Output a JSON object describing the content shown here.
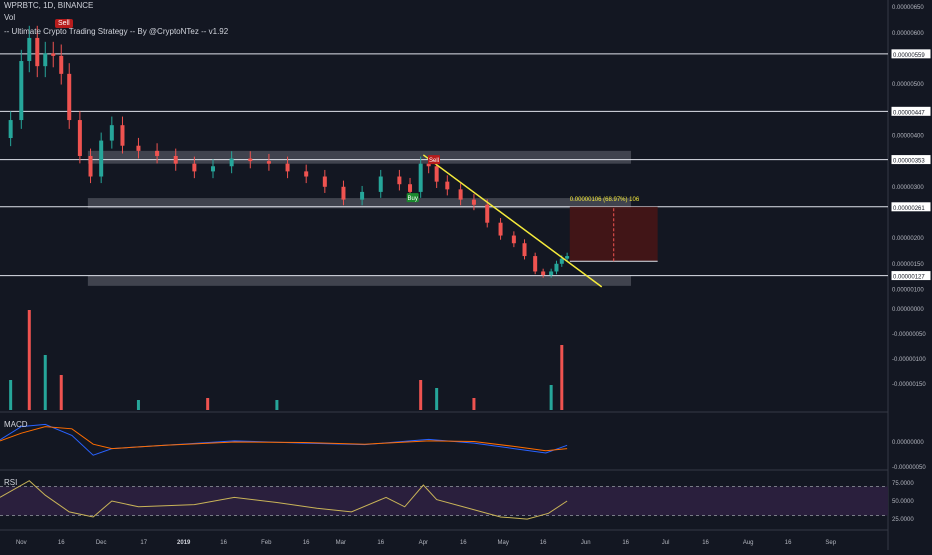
{
  "header": {
    "symbol": "WPRBTC, 1D, BINANCE",
    "volume_label": "Vol",
    "strategy": "-- Ultimate Crypto Trading Strategy -- By @CryptoNTez -- v1.92"
  },
  "colors": {
    "background": "#131722",
    "up": "#26a69a",
    "down": "#ef5350",
    "trendline": "#f5eb3b",
    "zone": "#787b86",
    "macd_line": "#2962ff",
    "signal_line": "#ff6d00",
    "rsi_line": "#c9b458",
    "rsi_band": "#2a1f3d",
    "target_box": "#4a1515"
  },
  "signals": {
    "sell_top": "Sell",
    "sell_mid": "Sell",
    "buy": "Buy"
  },
  "measure_label": "0.00000106 (68.97%) 106",
  "macd_label": "MACD",
  "rsi_label": "RSI",
  "chart_data": {
    "type": "candlestick",
    "x_ticks": [
      "Nov",
      "16",
      "Dec",
      "17",
      "2019",
      "16",
      "Feb",
      "16",
      "Mar",
      "16",
      "Apr",
      "16",
      "May",
      "16",
      "Jun",
      "16",
      "Jul",
      "16",
      "Aug",
      "16",
      "Sep"
    ],
    "price_ticks": [
      "0.00000650",
      "0.00000600",
      "0.00000500",
      "0.00000400",
      "0.00000300",
      "0.00000200",
      "0.00000150",
      "0.00000100"
    ],
    "price_ylim": [
      9.5e-07,
      6.6e-06
    ],
    "horizontal_levels": [
      {
        "label": "0.00000559",
        "value": 5.59e-06
      },
      {
        "label": "0.00000447",
        "value": 4.47e-06
      },
      {
        "label": "0.00000353",
        "value": 3.53e-06
      },
      {
        "label": "0.00000261",
        "value": 2.61e-06
      },
      {
        "label": "0.00000127",
        "value": 1.27e-06
      }
    ],
    "zones": [
      {
        "low": 3.45e-06,
        "high": 3.7e-06
      },
      {
        "low": 2.58e-06,
        "high": 2.78e-06
      },
      {
        "low": 1.07e-06,
        "high": 1.27e-06
      }
    ],
    "close_series": [
      {
        "date": "2018-10-24",
        "close": 3.95e-06
      },
      {
        "date": "2018-10-28",
        "close": 4.3e-06
      },
      {
        "date": "2018-11-01",
        "close": 5.45e-06
      },
      {
        "date": "2018-11-04",
        "close": 5.9e-06
      },
      {
        "date": "2018-11-07",
        "close": 5.35e-06
      },
      {
        "date": "2018-11-10",
        "close": 5.6e-06
      },
      {
        "date": "2018-11-13",
        "close": 5.55e-06
      },
      {
        "date": "2018-11-16",
        "close": 5.2e-06
      },
      {
        "date": "2018-11-19",
        "close": 4.3e-06
      },
      {
        "date": "2018-11-23",
        "close": 3.6e-06
      },
      {
        "date": "2018-11-27",
        "close": 3.2e-06
      },
      {
        "date": "2018-12-01",
        "close": 3.9e-06
      },
      {
        "date": "2018-12-05",
        "close": 4.2e-06
      },
      {
        "date": "2018-12-09",
        "close": 3.8e-06
      },
      {
        "date": "2018-12-15",
        "close": 3.7e-06
      },
      {
        "date": "2018-12-22",
        "close": 3.6e-06
      },
      {
        "date": "2018-12-29",
        "close": 3.45e-06
      },
      {
        "date": "2019-01-05",
        "close": 3.3e-06
      },
      {
        "date": "2019-01-12",
        "close": 3.4e-06
      },
      {
        "date": "2019-01-19",
        "close": 3.55e-06
      },
      {
        "date": "2019-01-26",
        "close": 3.5e-06
      },
      {
        "date": "2019-02-02",
        "close": 3.45e-06
      },
      {
        "date": "2019-02-09",
        "close": 3.3e-06
      },
      {
        "date": "2019-02-16",
        "close": 3.2e-06
      },
      {
        "date": "2019-02-23",
        "close": 3e-06
      },
      {
        "date": "2019-03-02",
        "close": 2.75e-06
      },
      {
        "date": "2019-03-09",
        "close": 2.9e-06
      },
      {
        "date": "2019-03-16",
        "close": 3.2e-06
      },
      {
        "date": "2019-03-23",
        "close": 3.05e-06
      },
      {
        "date": "2019-03-27",
        "close": 2.9e-06
      },
      {
        "date": "2019-03-31",
        "close": 3.45e-06
      },
      {
        "date": "2019-04-03",
        "close": 3.4e-06
      },
      {
        "date": "2019-04-06",
        "close": 3.1e-06
      },
      {
        "date": "2019-04-10",
        "close": 2.95e-06
      },
      {
        "date": "2019-04-15",
        "close": 2.75e-06
      },
      {
        "date": "2019-04-20",
        "close": 2.65e-06
      },
      {
        "date": "2019-04-25",
        "close": 2.3e-06
      },
      {
        "date": "2019-04-30",
        "close": 2.05e-06
      },
      {
        "date": "2019-05-05",
        "close": 1.9e-06
      },
      {
        "date": "2019-05-09",
        "close": 1.65e-06
      },
      {
        "date": "2019-05-13",
        "close": 1.35e-06
      },
      {
        "date": "2019-05-16",
        "close": 1.28e-06
      },
      {
        "date": "2019-05-19",
        "close": 1.35e-06
      },
      {
        "date": "2019-05-21",
        "close": 1.5e-06
      },
      {
        "date": "2019-05-23",
        "close": 1.6e-06
      },
      {
        "date": "2019-05-25",
        "close": 1.65e-06
      }
    ],
    "trendline": {
      "start": {
        "date": "2019-04-01",
        "price": 3.62e-06
      },
      "end": {
        "date": "2019-06-07",
        "price": 1.05e-06
      }
    },
    "target_box": {
      "start_date": "2019-05-26",
      "end_date": "2019-06-28",
      "low": 1.55e-06,
      "high": 2.61e-06
    },
    "volume": [
      {
        "date": "2018-10-28",
        "value": 0.3
      },
      {
        "date": "2018-11-04",
        "value": 1.0
      },
      {
        "date": "2018-11-10",
        "value": 0.55
      },
      {
        "date": "2018-11-16",
        "value": 0.35
      },
      {
        "date": "2018-12-15",
        "value": 0.1
      },
      {
        "date": "2019-01-10",
        "value": 0.12
      },
      {
        "date": "2019-02-05",
        "value": 0.1
      },
      {
        "date": "2019-03-31",
        "value": 0.3
      },
      {
        "date": "2019-04-06",
        "value": 0.22
      },
      {
        "date": "2019-04-20",
        "value": 0.12
      },
      {
        "date": "2019-05-19",
        "value": 0.25
      },
      {
        "date": "2019-05-23",
        "value": 0.65
      }
    ],
    "volume_ticks": [
      "0.00000000",
      "-0.00000050",
      "-0.00000100",
      "-0.00000150"
    ],
    "macd_ticks": [
      "0.00000000",
      "-0.00000050"
    ],
    "macd": [
      {
        "date": "2018-10-24",
        "macd": 0.1,
        "signal": 0.05
      },
      {
        "date": "2018-11-01",
        "macd": 0.7,
        "signal": 0.4
      },
      {
        "date": "2018-11-10",
        "macd": 0.8,
        "signal": 0.7
      },
      {
        "date": "2018-11-20",
        "macd": 0.3,
        "signal": 0.6
      },
      {
        "date": "2018-11-28",
        "macd": -0.6,
        "signal": -0.1
      },
      {
        "date": "2018-12-05",
        "macd": -0.3,
        "signal": -0.3
      },
      {
        "date": "2018-12-25",
        "macd": -0.15,
        "signal": -0.15
      },
      {
        "date": "2019-01-20",
        "macd": 0.05,
        "signal": 0.0
      },
      {
        "date": "2019-02-15",
        "macd": -0.05,
        "signal": -0.02
      },
      {
        "date": "2019-03-10",
        "macd": -0.12,
        "signal": -0.1
      },
      {
        "date": "2019-04-03",
        "macd": 0.12,
        "signal": 0.05
      },
      {
        "date": "2019-04-20",
        "macd": -0.05,
        "signal": 0.02
      },
      {
        "date": "2019-05-05",
        "macd": -0.3,
        "signal": -0.2
      },
      {
        "date": "2019-05-17",
        "macd": -0.5,
        "signal": -0.4
      },
      {
        "date": "2019-05-25",
        "macd": -0.15,
        "signal": -0.3
      }
    ],
    "rsi_ticks": [
      "75.0000",
      "50.0000",
      "25.0000"
    ],
    "rsi_band": [
      30,
      70
    ],
    "rsi": [
      {
        "date": "2018-10-24",
        "value": 55
      },
      {
        "date": "2018-11-04",
        "value": 78
      },
      {
        "date": "2018-11-10",
        "value": 58
      },
      {
        "date": "2018-11-19",
        "value": 35
      },
      {
        "date": "2018-11-28",
        "value": 28
      },
      {
        "date": "2018-12-05",
        "value": 50
      },
      {
        "date": "2018-12-15",
        "value": 42
      },
      {
        "date": "2019-01-05",
        "value": 45
      },
      {
        "date": "2019-01-20",
        "value": 55
      },
      {
        "date": "2019-02-05",
        "value": 48
      },
      {
        "date": "2019-02-20",
        "value": 40
      },
      {
        "date": "2019-03-05",
        "value": 35
      },
      {
        "date": "2019-03-18",
        "value": 55
      },
      {
        "date": "2019-03-25",
        "value": 42
      },
      {
        "date": "2019-04-01",
        "value": 72
      },
      {
        "date": "2019-04-06",
        "value": 52
      },
      {
        "date": "2019-04-18",
        "value": 40
      },
      {
        "date": "2019-04-30",
        "value": 28
      },
      {
        "date": "2019-05-10",
        "value": 25
      },
      {
        "date": "2019-05-18",
        "value": 33
      },
      {
        "date": "2019-05-25",
        "value": 50
      }
    ]
  }
}
